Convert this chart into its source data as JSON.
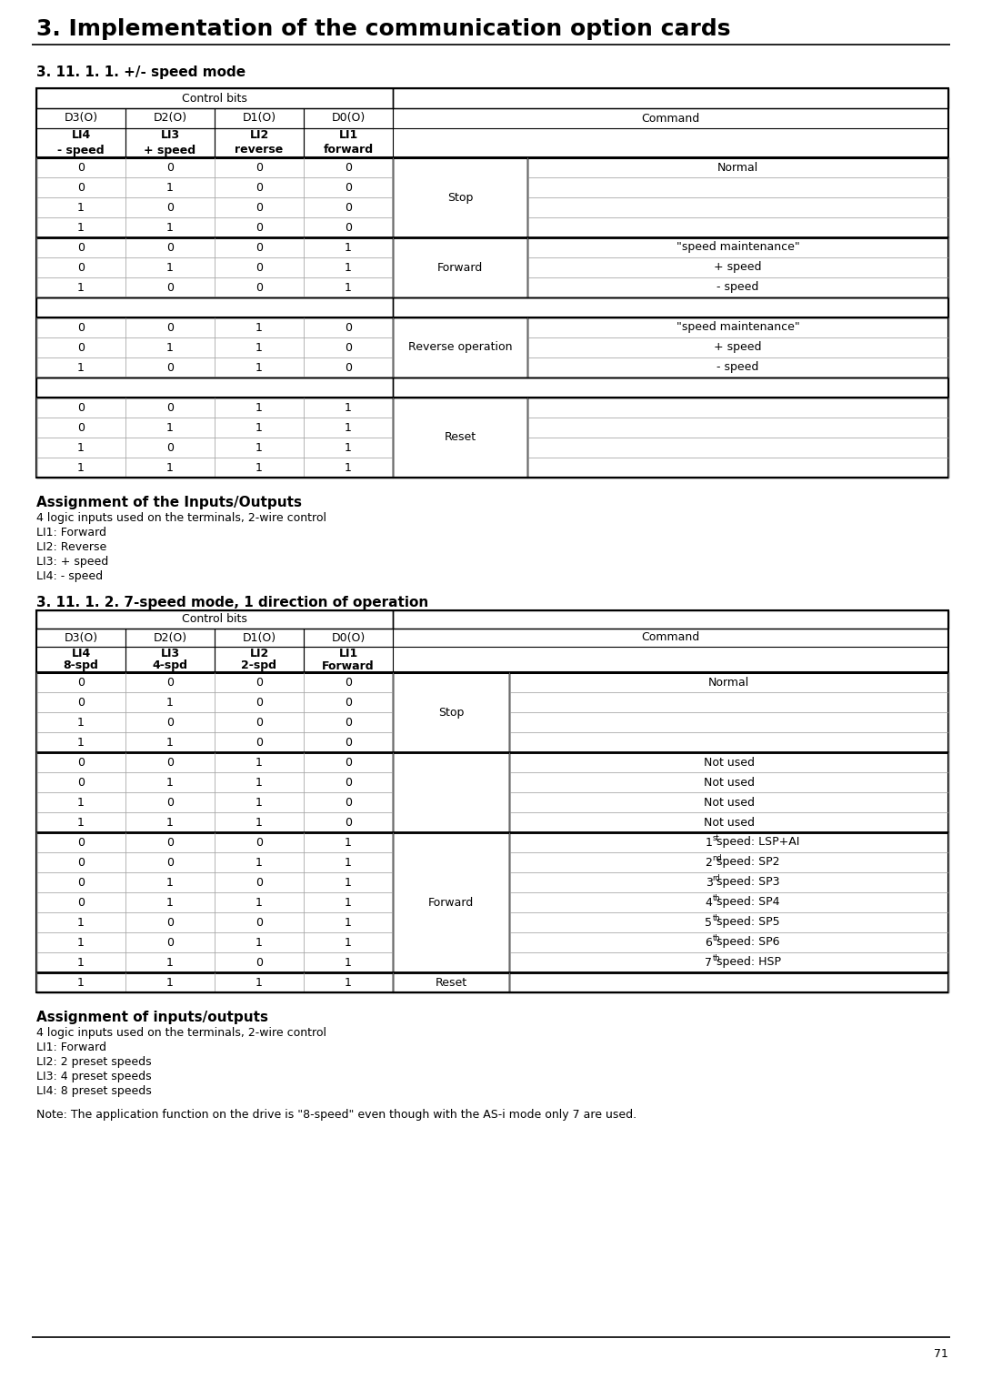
{
  "page_title": "3. Implementation of the communication option cards",
  "section1_title": "3. 11. 1. 1. +/- speed mode",
  "section2_title": "3. 11. 1. 2. 7-speed mode, 1 direction of operation",
  "assign1_title": "Assignment of the Inputs/Outputs",
  "assign2_title": "Assignment of inputs/outputs",
  "assign1_lines": [
    "4 logic inputs used on the terminals, 2-wire control",
    "LI1: Forward",
    "LI2: Reverse",
    "LI3: + speed",
    "LI4: - speed"
  ],
  "assign2_lines": [
    "4 logic inputs used on the terminals, 2-wire control",
    "LI1: Forward",
    "LI2: 2 preset speeds",
    "LI3: 4 preset speeds",
    "LI4: 8 preset speeds"
  ],
  "note_text": "Note: The application function on the drive is \"8-speed\" even though with the AS-i mode only 7 are used.",
  "page_number": "71",
  "bg_color": "#ffffff"
}
